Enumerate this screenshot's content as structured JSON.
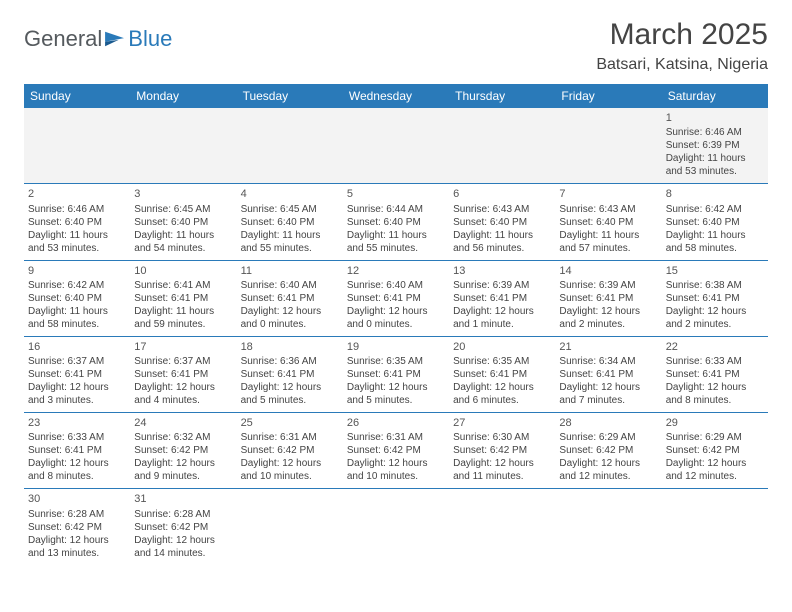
{
  "logo": {
    "text1": "General",
    "text2": "Blue"
  },
  "title": "March 2025",
  "location": "Batsari, Katsina, Nigeria",
  "colors": {
    "header_bg": "#2a7ab9",
    "header_fg": "#ffffff",
    "border": "#2a7ab9",
    "shade": "#f3f3f3"
  },
  "weekdays": [
    "Sunday",
    "Monday",
    "Tuesday",
    "Wednesday",
    "Thursday",
    "Friday",
    "Saturday"
  ],
  "weeks": [
    [
      null,
      null,
      null,
      null,
      null,
      null,
      {
        "n": "1",
        "sr": "Sunrise: 6:46 AM",
        "ss": "Sunset: 6:39 PM",
        "dl": "Daylight: 11 hours and 53 minutes."
      }
    ],
    [
      {
        "n": "2",
        "sr": "Sunrise: 6:46 AM",
        "ss": "Sunset: 6:40 PM",
        "dl": "Daylight: 11 hours and 53 minutes."
      },
      {
        "n": "3",
        "sr": "Sunrise: 6:45 AM",
        "ss": "Sunset: 6:40 PM",
        "dl": "Daylight: 11 hours and 54 minutes."
      },
      {
        "n": "4",
        "sr": "Sunrise: 6:45 AM",
        "ss": "Sunset: 6:40 PM",
        "dl": "Daylight: 11 hours and 55 minutes."
      },
      {
        "n": "5",
        "sr": "Sunrise: 6:44 AM",
        "ss": "Sunset: 6:40 PM",
        "dl": "Daylight: 11 hours and 55 minutes."
      },
      {
        "n": "6",
        "sr": "Sunrise: 6:43 AM",
        "ss": "Sunset: 6:40 PM",
        "dl": "Daylight: 11 hours and 56 minutes."
      },
      {
        "n": "7",
        "sr": "Sunrise: 6:43 AM",
        "ss": "Sunset: 6:40 PM",
        "dl": "Daylight: 11 hours and 57 minutes."
      },
      {
        "n": "8",
        "sr": "Sunrise: 6:42 AM",
        "ss": "Sunset: 6:40 PM",
        "dl": "Daylight: 11 hours and 58 minutes."
      }
    ],
    [
      {
        "n": "9",
        "sr": "Sunrise: 6:42 AM",
        "ss": "Sunset: 6:40 PM",
        "dl": "Daylight: 11 hours and 58 minutes."
      },
      {
        "n": "10",
        "sr": "Sunrise: 6:41 AM",
        "ss": "Sunset: 6:41 PM",
        "dl": "Daylight: 11 hours and 59 minutes."
      },
      {
        "n": "11",
        "sr": "Sunrise: 6:40 AM",
        "ss": "Sunset: 6:41 PM",
        "dl": "Daylight: 12 hours and 0 minutes."
      },
      {
        "n": "12",
        "sr": "Sunrise: 6:40 AM",
        "ss": "Sunset: 6:41 PM",
        "dl": "Daylight: 12 hours and 0 minutes."
      },
      {
        "n": "13",
        "sr": "Sunrise: 6:39 AM",
        "ss": "Sunset: 6:41 PM",
        "dl": "Daylight: 12 hours and 1 minute."
      },
      {
        "n": "14",
        "sr": "Sunrise: 6:39 AM",
        "ss": "Sunset: 6:41 PM",
        "dl": "Daylight: 12 hours and 2 minutes."
      },
      {
        "n": "15",
        "sr": "Sunrise: 6:38 AM",
        "ss": "Sunset: 6:41 PM",
        "dl": "Daylight: 12 hours and 2 minutes."
      }
    ],
    [
      {
        "n": "16",
        "sr": "Sunrise: 6:37 AM",
        "ss": "Sunset: 6:41 PM",
        "dl": "Daylight: 12 hours and 3 minutes."
      },
      {
        "n": "17",
        "sr": "Sunrise: 6:37 AM",
        "ss": "Sunset: 6:41 PM",
        "dl": "Daylight: 12 hours and 4 minutes."
      },
      {
        "n": "18",
        "sr": "Sunrise: 6:36 AM",
        "ss": "Sunset: 6:41 PM",
        "dl": "Daylight: 12 hours and 5 minutes."
      },
      {
        "n": "19",
        "sr": "Sunrise: 6:35 AM",
        "ss": "Sunset: 6:41 PM",
        "dl": "Daylight: 12 hours and 5 minutes."
      },
      {
        "n": "20",
        "sr": "Sunrise: 6:35 AM",
        "ss": "Sunset: 6:41 PM",
        "dl": "Daylight: 12 hours and 6 minutes."
      },
      {
        "n": "21",
        "sr": "Sunrise: 6:34 AM",
        "ss": "Sunset: 6:41 PM",
        "dl": "Daylight: 12 hours and 7 minutes."
      },
      {
        "n": "22",
        "sr": "Sunrise: 6:33 AM",
        "ss": "Sunset: 6:41 PM",
        "dl": "Daylight: 12 hours and 8 minutes."
      }
    ],
    [
      {
        "n": "23",
        "sr": "Sunrise: 6:33 AM",
        "ss": "Sunset: 6:41 PM",
        "dl": "Daylight: 12 hours and 8 minutes."
      },
      {
        "n": "24",
        "sr": "Sunrise: 6:32 AM",
        "ss": "Sunset: 6:42 PM",
        "dl": "Daylight: 12 hours and 9 minutes."
      },
      {
        "n": "25",
        "sr": "Sunrise: 6:31 AM",
        "ss": "Sunset: 6:42 PM",
        "dl": "Daylight: 12 hours and 10 minutes."
      },
      {
        "n": "26",
        "sr": "Sunrise: 6:31 AM",
        "ss": "Sunset: 6:42 PM",
        "dl": "Daylight: 12 hours and 10 minutes."
      },
      {
        "n": "27",
        "sr": "Sunrise: 6:30 AM",
        "ss": "Sunset: 6:42 PM",
        "dl": "Daylight: 12 hours and 11 minutes."
      },
      {
        "n": "28",
        "sr": "Sunrise: 6:29 AM",
        "ss": "Sunset: 6:42 PM",
        "dl": "Daylight: 12 hours and 12 minutes."
      },
      {
        "n": "29",
        "sr": "Sunrise: 6:29 AM",
        "ss": "Sunset: 6:42 PM",
        "dl": "Daylight: 12 hours and 12 minutes."
      }
    ],
    [
      {
        "n": "30",
        "sr": "Sunrise: 6:28 AM",
        "ss": "Sunset: 6:42 PM",
        "dl": "Daylight: 12 hours and 13 minutes."
      },
      {
        "n": "31",
        "sr": "Sunrise: 6:28 AM",
        "ss": "Sunset: 6:42 PM",
        "dl": "Daylight: 12 hours and 14 minutes."
      },
      null,
      null,
      null,
      null,
      null
    ]
  ]
}
